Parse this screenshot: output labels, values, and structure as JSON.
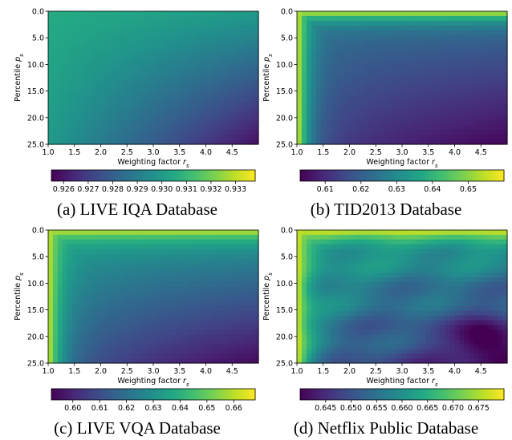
{
  "colors": {
    "viridis": [
      "#440154",
      "#482475",
      "#414487",
      "#355f8d",
      "#2a788e",
      "#21918c",
      "#22a884",
      "#44bf70",
      "#7ad151",
      "#bddf26",
      "#fde725"
    ]
  },
  "chart_data": [
    {
      "type": "heatmap",
      "caption": "(a) LIVE IQA Database",
      "xlabel": "Weighting factor r_s",
      "ylabel": "Percentile p_s",
      "xlim": [
        1.0,
        5.0
      ],
      "ylim": [
        25.0,
        0.0
      ],
      "x_ticks": [
        "1.0",
        "1.5",
        "2.0",
        "2.5",
        "3.0",
        "3.5",
        "4.0",
        "4.5"
      ],
      "y_ticks": [
        "0.0",
        "5.0",
        "10.0",
        "15.0",
        "20.0",
        "25.0"
      ],
      "colorbar": {
        "range": [
          0.9255,
          0.9338
        ],
        "ticks": [
          "0.926",
          "0.927",
          "0.928",
          "0.929",
          "0.930",
          "0.931",
          "0.932",
          "0.933"
        ]
      },
      "field": {
        "top_left": 0.9306,
        "top_right": 0.93,
        "bottom_left": 0.93,
        "bottom_right": 0.9258
      }
    },
    {
      "type": "heatmap",
      "caption": "(b) TID2013 Database",
      "xlabel": "Weighting factor r_s",
      "ylabel": "Percentile p_s",
      "xlim": [
        1.0,
        5.0
      ],
      "ylim": [
        25.0,
        0.0
      ],
      "x_ticks": [
        "1.0",
        "1.5",
        "2.0",
        "2.5",
        "3.0",
        "3.5",
        "4.0",
        "4.5"
      ],
      "y_ticks": [
        "0.0",
        "5.0",
        "10.0",
        "15.0",
        "20.0",
        "25.0"
      ],
      "colorbar": {
        "range": [
          0.603,
          0.66
        ],
        "ticks": [
          "0.61",
          "0.62",
          "0.63",
          "0.64",
          "0.65"
        ]
      },
      "field": {
        "edge_max": 0.659,
        "top_right": 0.625,
        "bottom_right": 0.604
      }
    },
    {
      "type": "heatmap",
      "caption": "(c) LIVE VQA Database",
      "xlabel": "Weighting factor r_s",
      "ylabel": "Percentile p_s",
      "xlim": [
        1.0,
        5.0
      ],
      "ylim": [
        25.0,
        0.0
      ],
      "x_ticks": [
        "1.0",
        "1.5",
        "2.0",
        "2.5",
        "3.0",
        "3.5",
        "4.0",
        "4.5"
      ],
      "y_ticks": [
        "0.0",
        "5.0",
        "10.0",
        "15.0",
        "20.0",
        "25.0"
      ],
      "colorbar": {
        "range": [
          0.592,
          0.668
        ],
        "ticks": [
          "0.60",
          "0.61",
          "0.62",
          "0.63",
          "0.64",
          "0.65",
          "0.66"
        ]
      },
      "field": {
        "edge_max": 0.664,
        "top_right": 0.635,
        "bottom_right": 0.594
      }
    },
    {
      "type": "heatmap",
      "caption": "(d) Netflix Public Database",
      "xlabel": "Weighting factor r_s",
      "ylabel": "Percentile p_s",
      "xlim": [
        1.0,
        5.0
      ],
      "ylim": [
        25.0,
        0.0
      ],
      "x_ticks": [
        "1.0",
        "1.5",
        "2.0",
        "2.5",
        "3.0",
        "3.5",
        "4.0",
        "4.5"
      ],
      "y_ticks": [
        "0.0",
        "5.0",
        "10.0",
        "15.0",
        "20.0",
        "25.0"
      ],
      "colorbar": {
        "range": [
          0.64,
          0.68
        ],
        "ticks": [
          "0.645",
          "0.650",
          "0.655",
          "0.660",
          "0.665",
          "0.670",
          "0.675"
        ]
      },
      "field": {
        "edge_max": 0.679,
        "top_right": 0.663,
        "bottom_right": 0.644
      }
    }
  ]
}
